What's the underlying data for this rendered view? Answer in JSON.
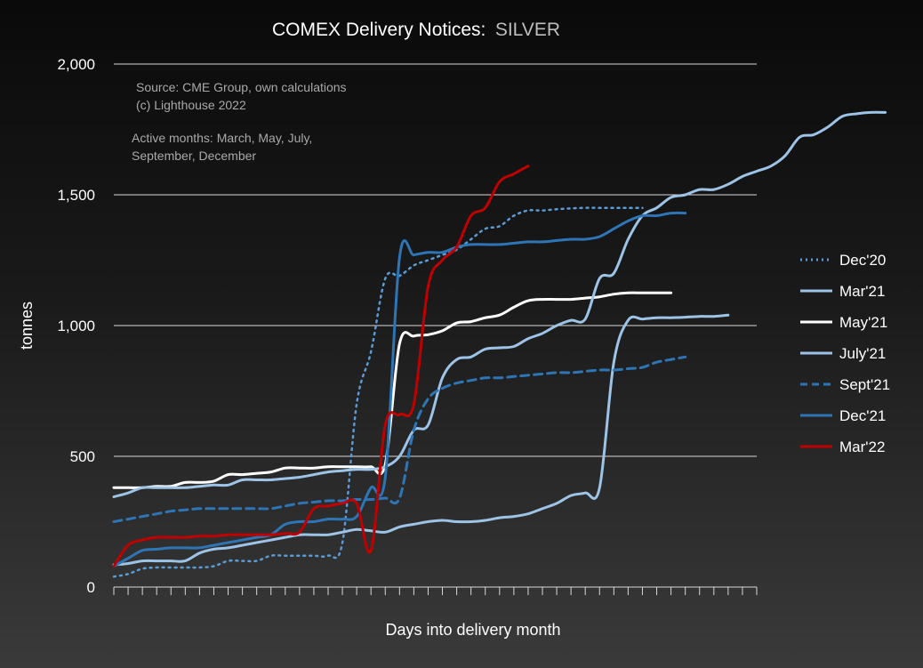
{
  "chart_data": {
    "type": "line",
    "title": "COMEX Delivery Notices:",
    "subtitle": "SILVER",
    "xlabel": "Days into delivery month",
    "ylabel": "tonnes",
    "ylim": [
      0,
      2000
    ],
    "yticks": [
      0,
      500,
      1000,
      1500,
      2000
    ],
    "ytick_labels": [
      "0",
      "500",
      "1,000",
      "1,500",
      "2,000"
    ],
    "grid": true,
    "legend_position": "right",
    "x_count": 46,
    "annotations": [
      "Source: CME Group, own calculations",
      "(c) Lighthouse 2022",
      "Active months: March, May, July,",
      "September, December"
    ],
    "series": [
      {
        "name": "Dec'20",
        "color": "#5b9bd5",
        "dash": "dotted",
        "values": [
          40,
          50,
          70,
          75,
          75,
          75,
          75,
          80,
          100,
          100,
          100,
          120,
          120,
          120,
          120,
          120,
          170,
          700,
          900,
          1180,
          1190,
          1230,
          1250,
          1270,
          1290,
          1330,
          1370,
          1380,
          1420,
          1440,
          1440,
          1445,
          1448,
          1450,
          1450,
          1450,
          1450,
          1450
        ]
      },
      {
        "name": "Mar'21",
        "color": "#9dc3e6",
        "dash": "solid",
        "values": [
          85,
          90,
          100,
          100,
          100,
          100,
          130,
          145,
          150,
          160,
          170,
          180,
          190,
          200,
          200,
          200,
          210,
          220,
          215,
          210,
          230,
          240,
          250,
          255,
          250,
          250,
          255,
          265,
          270,
          280,
          300,
          320,
          350,
          360,
          380,
          860,
          1020,
          1025,
          1030,
          1030,
          1032,
          1035,
          1035,
          1040
        ]
      },
      {
        "name": "May'21",
        "color": "#ffffff",
        "dash": "solid",
        "values": [
          380,
          380,
          380,
          385,
          385,
          400,
          400,
          405,
          430,
          430,
          435,
          440,
          455,
          455,
          455,
          460,
          460,
          460,
          460,
          470,
          930,
          960,
          965,
          980,
          1010,
          1015,
          1030,
          1040,
          1070,
          1095,
          1100,
          1100,
          1100,
          1105,
          1110,
          1120,
          1125,
          1125,
          1125,
          1125
        ]
      },
      {
        "name": "July'21",
        "color": "#9dc3e6",
        "dash": "solid",
        "values": [
          345,
          360,
          380,
          380,
          380,
          380,
          385,
          390,
          390,
          410,
          410,
          410,
          415,
          420,
          430,
          440,
          445,
          450,
          450,
          460,
          500,
          600,
          620,
          800,
          870,
          880,
          910,
          915,
          920,
          950,
          970,
          1000,
          1020,
          1025,
          1180,
          1200,
          1330,
          1420,
          1450,
          1490,
          1500,
          1520,
          1520,
          1540,
          1570,
          1590,
          1610,
          1650,
          1720,
          1730,
          1760,
          1800,
          1810,
          1815,
          1815
        ]
      },
      {
        "name": "Sept'21",
        "color": "#2e75b6",
        "dash": "dashed",
        "values": [
          250,
          260,
          270,
          280,
          290,
          295,
          300,
          300,
          300,
          300,
          300,
          300,
          310,
          320,
          325,
          330,
          330,
          335,
          335,
          340,
          340,
          600,
          720,
          760,
          780,
          790,
          800,
          800,
          805,
          810,
          815,
          820,
          820,
          825,
          830,
          830,
          835,
          840,
          860,
          870,
          880
        ]
      },
      {
        "name": "Dec'21",
        "color": "#2e75b6",
        "dash": "solid",
        "values": [
          80,
          110,
          140,
          145,
          150,
          150,
          150,
          160,
          170,
          180,
          190,
          200,
          240,
          250,
          250,
          260,
          260,
          270,
          380,
          420,
          1260,
          1270,
          1280,
          1280,
          1300,
          1310,
          1310,
          1310,
          1315,
          1320,
          1320,
          1325,
          1330,
          1330,
          1340,
          1370,
          1400,
          1420,
          1420,
          1430,
          1430
        ]
      },
      {
        "name": "Mar'22",
        "color": "#c00000",
        "dash": "solid",
        "values": [
          80,
          160,
          180,
          190,
          190,
          190,
          195,
          195,
          200,
          200,
          200,
          200,
          205,
          210,
          300,
          310,
          320,
          320,
          140,
          620,
          660,
          700,
          1150,
          1250,
          1300,
          1420,
          1450,
          1550,
          1580,
          1610
        ]
      }
    ]
  }
}
